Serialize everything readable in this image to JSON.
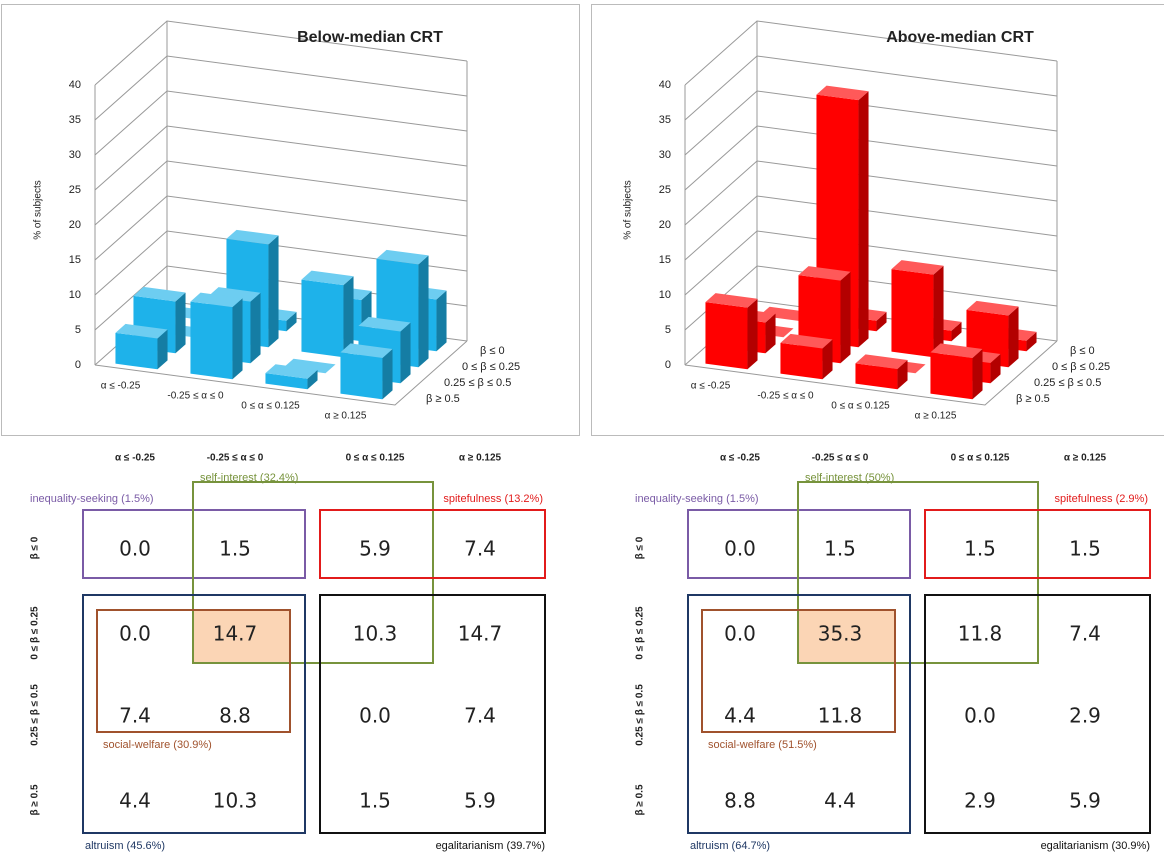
{
  "chart_data": [
    {
      "type": "bar3d",
      "title": "Below-median CRT",
      "y_label": "% of subjects",
      "color": "#1eb2ea",
      "ylim": [
        0,
        40
      ],
      "yticks": [
        0,
        5,
        10,
        15,
        20,
        25,
        30,
        35,
        40
      ],
      "categories": [
        "α ≤ -0.25",
        "-0.25 ≤ α ≤ 0",
        "0 ≤ α ≤ 0.125",
        "α ≥ 0.125"
      ],
      "series": [
        {
          "name": "β ≤ 0",
          "values": [
            0,
            1.5,
            5.9,
            7.4
          ],
          "value_labels": [
            "0.0",
            "1.5",
            "5.9",
            "7.4"
          ]
        },
        {
          "name": "0 ≤ β ≤ 0.25",
          "values": [
            0,
            14.7,
            10.3,
            14.7
          ],
          "value_labels": [
            "0.0",
            "14.7",
            "10.3",
            "14.7"
          ]
        },
        {
          "name": "0.25 ≤ β ≤ 0.5",
          "values": [
            7.4,
            8.8,
            0,
            7.4
          ],
          "value_labels": [
            "7.4",
            "8.8",
            "0.0",
            "7.4"
          ]
        },
        {
          "name": "β ≥ 0.5",
          "values": [
            4.4,
            10.3,
            1.5,
            5.9
          ],
          "value_labels": [
            "4.4",
            "10.3",
            "1.5",
            "5.9"
          ]
        }
      ],
      "groups": [
        {
          "label": "inequality-seeking (1.5%)",
          "color": "#7a5ba6"
        },
        {
          "label": "self-interest (32.4%)",
          "color": "#77933c"
        },
        {
          "label": "spitefulness (13.2%)",
          "color": "#e21b1b"
        },
        {
          "label": "social-welfare (30.9%)",
          "color": "#a0522d"
        },
        {
          "label": "altruism (45.6%)",
          "color": "#1f3864"
        },
        {
          "label": "egalitarianism (39.7%)",
          "color": "#111111"
        }
      ]
    },
    {
      "type": "bar3d",
      "title": "Above-median CRT",
      "y_label": "% of subjects",
      "color": "#ff0000",
      "ylim": [
        0,
        40
      ],
      "yticks": [
        0,
        5,
        10,
        15,
        20,
        25,
        30,
        35,
        40
      ],
      "categories": [
        "α ≤ -0.25",
        "-0.25 ≤ α ≤ 0",
        "0 ≤ α ≤ 0.125",
        "α ≥ 0.125"
      ],
      "series": [
        {
          "name": "β ≤ 0",
          "values": [
            0,
            1.5,
            1.5,
            1.5
          ],
          "value_labels": [
            "0.0",
            "1.5",
            "1.5",
            "1.5"
          ]
        },
        {
          "name": "0 ≤ β ≤ 0.25",
          "values": [
            0,
            35.3,
            11.8,
            7.4
          ],
          "value_labels": [
            "0.0",
            "35.3",
            "11.8",
            "7.4"
          ]
        },
        {
          "name": "0.25 ≤ β ≤ 0.5",
          "values": [
            4.4,
            11.8,
            0,
            2.9
          ],
          "value_labels": [
            "4.4",
            "11.8",
            "0.0",
            "2.9"
          ]
        },
        {
          "name": "β ≥ 0.5",
          "values": [
            8.8,
            4.4,
            2.9,
            5.9
          ],
          "value_labels": [
            "8.8",
            "4.4",
            "2.9",
            "5.9"
          ]
        }
      ],
      "groups": [
        {
          "label": "inequality-seeking (1.5%)",
          "color": "#7a5ba6"
        },
        {
          "label": "self-interest (50%)",
          "color": "#77933c"
        },
        {
          "label": "spitefulness (2.9%)",
          "color": "#e21b1b"
        },
        {
          "label": "social-welfare (51.5%)",
          "color": "#a0522d"
        },
        {
          "label": "altruism (64.7%)",
          "color": "#1f3864"
        },
        {
          "label": "egalitarianism (30.9%)",
          "color": "#111111"
        }
      ]
    }
  ]
}
